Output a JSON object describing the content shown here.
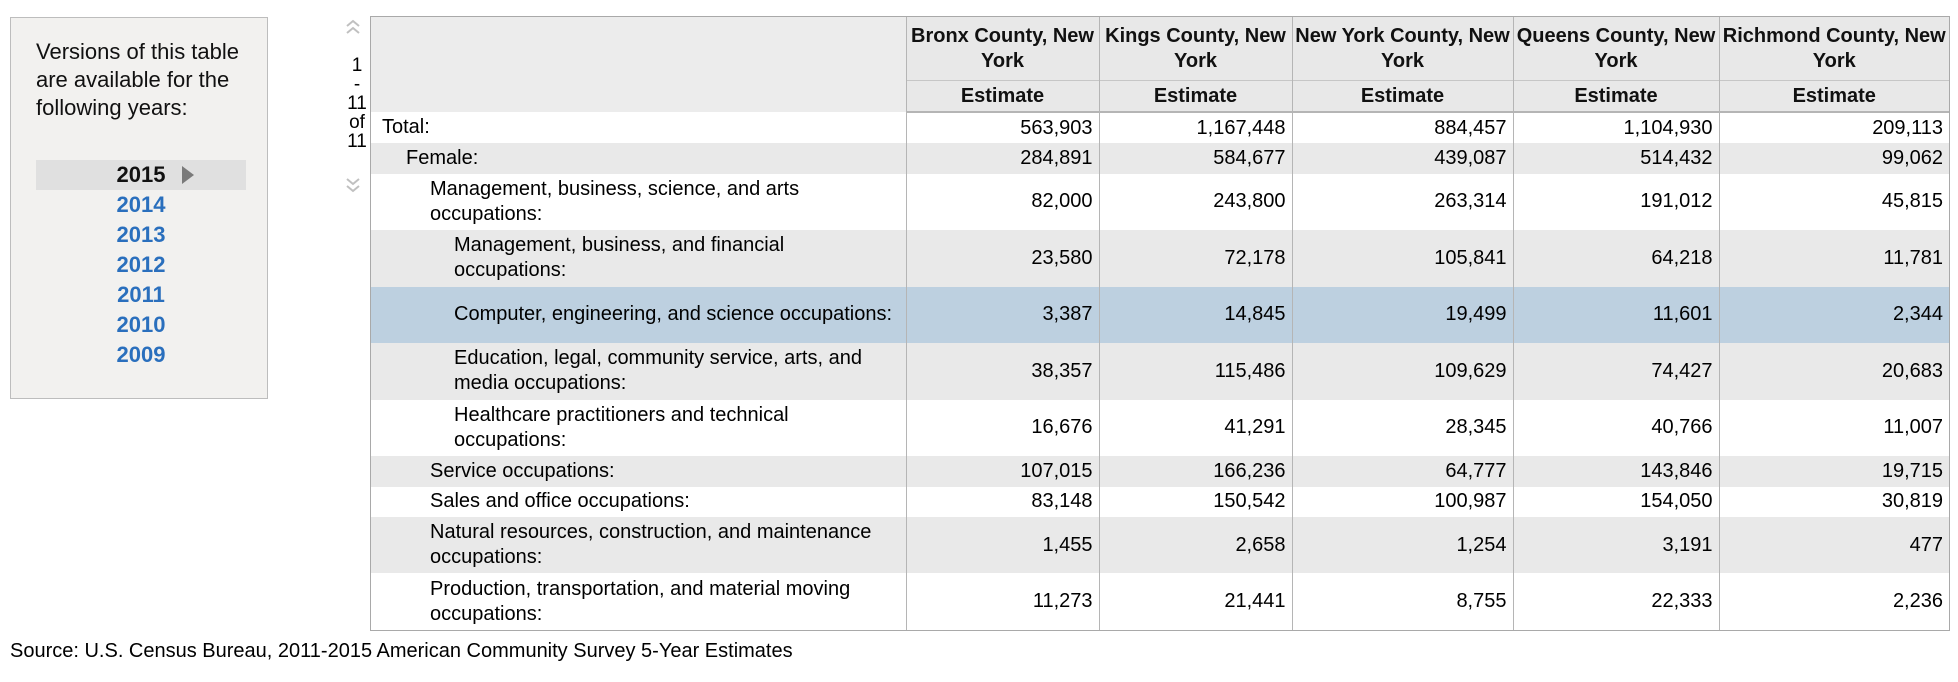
{
  "versions": {
    "heading": "Versions of this table are available for the following years:",
    "years": [
      "2015",
      "2014",
      "2013",
      "2012",
      "2011",
      "2010",
      "2009"
    ],
    "selected": "2015"
  },
  "pager": {
    "first": "1",
    "dash": "-",
    "current": "11",
    "of": "of",
    "total": "11"
  },
  "table": {
    "columns": [
      {
        "county": "Bronx County, New York",
        "measure": "Estimate"
      },
      {
        "county": "Kings County, New York",
        "measure": "Estimate"
      },
      {
        "county": "New York County, New York",
        "measure": "Estimate"
      },
      {
        "county": "Queens County, New York",
        "measure": "Estimate"
      },
      {
        "county": "Richmond County, New York",
        "measure": "Estimate"
      }
    ],
    "rows": [
      {
        "label": "Total:",
        "level": 0,
        "values": [
          "563,903",
          "1,167,448",
          "884,457",
          "1,104,930",
          "209,113"
        ]
      },
      {
        "label": "Female:",
        "level": 1,
        "values": [
          "284,891",
          "584,677",
          "439,087",
          "514,432",
          "99,062"
        ]
      },
      {
        "label": "Management, business, science, and arts occupations:",
        "level": 2,
        "values": [
          "82,000",
          "243,800",
          "263,314",
          "191,012",
          "45,815"
        ]
      },
      {
        "label": "Management, business, and financial occupations:",
        "level": 3,
        "values": [
          "23,580",
          "72,178",
          "105,841",
          "64,218",
          "11,781"
        ]
      },
      {
        "label": "Computer, engineering, and science occupations:",
        "level": 3,
        "values": [
          "3,387",
          "14,845",
          "19,499",
          "11,601",
          "2,344"
        ],
        "highlighted": true
      },
      {
        "label": "Education, legal, community service, arts, and media occupations:",
        "level": 3,
        "values": [
          "38,357",
          "115,486",
          "109,629",
          "74,427",
          "20,683"
        ]
      },
      {
        "label": "Healthcare practitioners and technical occupations:",
        "level": 3,
        "values": [
          "16,676",
          "41,291",
          "28,345",
          "40,766",
          "11,007"
        ]
      },
      {
        "label": "Service occupations:",
        "level": 2,
        "values": [
          "107,015",
          "166,236",
          "64,777",
          "143,846",
          "19,715"
        ]
      },
      {
        "label": "Sales and office occupations:",
        "level": 2,
        "values": [
          "83,148",
          "150,542",
          "100,987",
          "154,050",
          "30,819"
        ]
      },
      {
        "label": "Natural resources, construction, and maintenance occupations:",
        "level": 2,
        "values": [
          "1,455",
          "2,658",
          "1,254",
          "3,191",
          "477"
        ]
      },
      {
        "label": "Production, transportation, and material moving occupations:",
        "level": 2,
        "values": [
          "11,273",
          "21,441",
          "8,755",
          "22,333",
          "2,236"
        ]
      }
    ]
  },
  "source": "Source: U.S. Census Bureau, 2011-2015 American Community Survey 5-Year Estimates",
  "colors": {
    "link": "#2a6fbd",
    "highlight_row": "#bdd0e0",
    "stripe": "#e9e9e9",
    "header_bg": "#e8e8e8"
  },
  "icons": {
    "pager_up": "double-chevron-up-icon",
    "pager_down": "double-chevron-down-icon",
    "selected_marker": "triangle-right-icon"
  }
}
